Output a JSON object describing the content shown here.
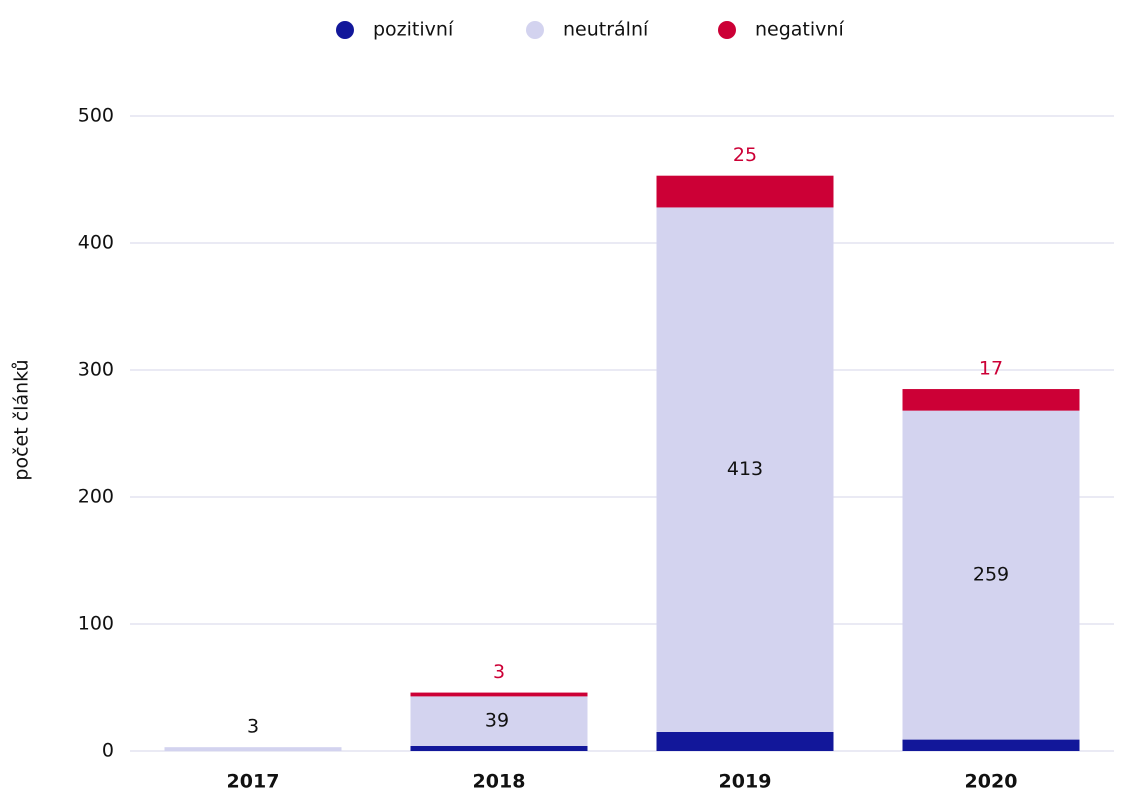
{
  "chart_data": {
    "type": "stacked_bar",
    "y_label": "počet článků",
    "categories": [
      "2017",
      "2018",
      "2019",
      "2020"
    ],
    "series": [
      {
        "name": "pozitivní",
        "color": "#12179a",
        "values": [
          null,
          4,
          15,
          9
        ]
      },
      {
        "name": "neutrální",
        "color": "#d3d3ef",
        "values": [
          3,
          39,
          413,
          259
        ]
      },
      {
        "name": "negativní",
        "color": "#cc0036",
        "values": [
          null,
          3,
          25,
          17
        ]
      }
    ],
    "ylim": [
      0,
      500
    ],
    "yticks": [
      0,
      100,
      200,
      300,
      400,
      500
    ],
    "grid": true
  }
}
